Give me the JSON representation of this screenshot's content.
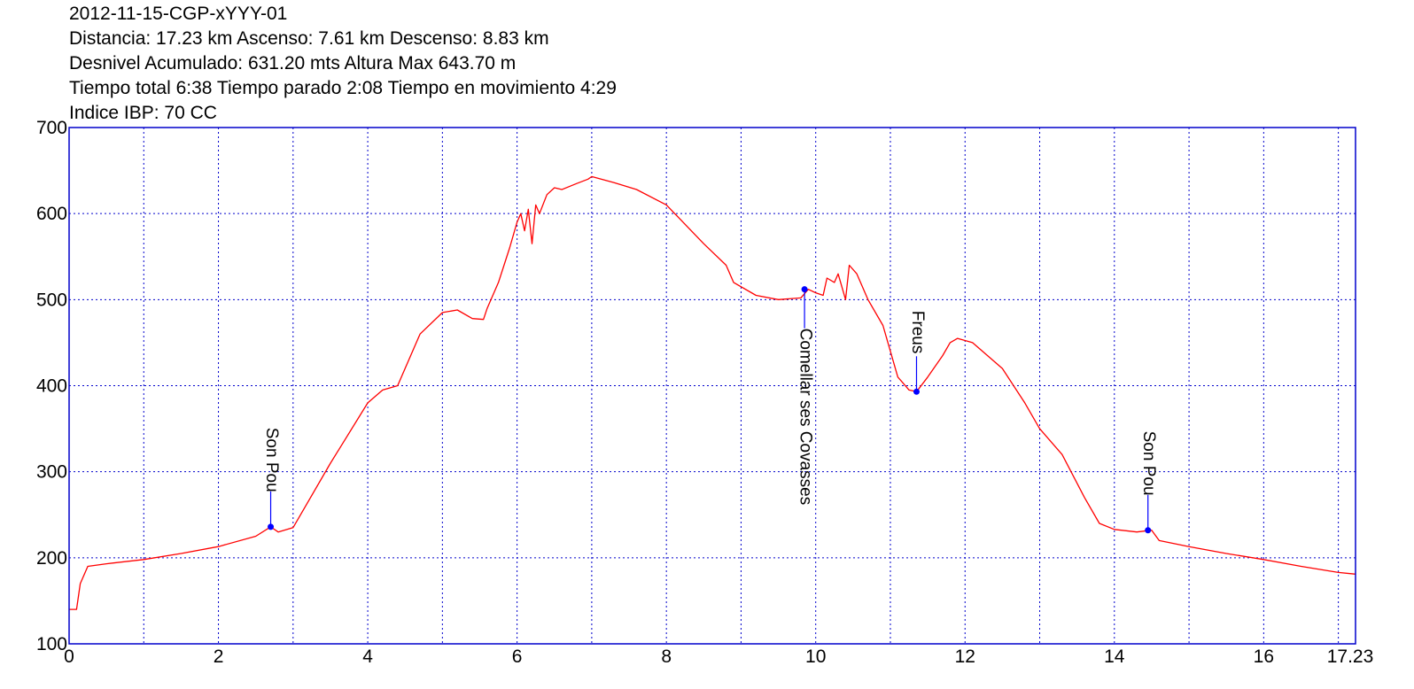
{
  "header": {
    "line1": "2012-11-15-CGP-xYYY-01",
    "line2": "Distancia: 17.23 km Ascenso: 7.61 km Descenso: 8.83 km",
    "line3": "Desnivel Acumulado: 631.20 mts  Altura Max 643.70 m",
    "line4": "Tiempo total 6:38 Tiempo parado 2:08 Tiempo en movimiento 4:29",
    "line5": "Indice IBP: 70 CC"
  },
  "colors": {
    "profile": "#ff0000",
    "frame": "#0000cc",
    "grid": "#0000cc",
    "waypoint": "#0000ff",
    "waypoint_line": "#0000ff"
  },
  "chart_data": {
    "type": "line",
    "xlim": [
      0,
      17.23
    ],
    "ylim": [
      100,
      700
    ],
    "grid": true,
    "grid_style": "dotted",
    "x_ticks": [
      0,
      2,
      4,
      6,
      8,
      10,
      12,
      14,
      16,
      17.23
    ],
    "x_tick_labels": [
      "0",
      "2",
      "4",
      "6",
      "8",
      "10",
      "12",
      "14",
      "16",
      "17.23"
    ],
    "x_grid": [
      1,
      2,
      3,
      4,
      5,
      6,
      7,
      8,
      9,
      10,
      11,
      12,
      13,
      14,
      15,
      16,
      17
    ],
    "y_ticks": [
      100,
      200,
      300,
      400,
      500,
      600,
      700
    ],
    "y_tick_labels": [
      "100",
      "200",
      "300",
      "400",
      "500",
      "600",
      "700"
    ],
    "series": [
      {
        "x": [
          0,
          0.1,
          0.15,
          0.25,
          0.5,
          1,
          1.5,
          2,
          2.5,
          2.7,
          2.8,
          3,
          3.1,
          3.5,
          4,
          4.2,
          4.4,
          4.7,
          5,
          5.2,
          5.4,
          5.55,
          5.6,
          5.75,
          5.9,
          6.0,
          6.05,
          6.1,
          6.15,
          6.2,
          6.25,
          6.3,
          6.4,
          6.5,
          6.6,
          6.8,
          6.95,
          7.0,
          7.3,
          7.6,
          8.0,
          8.5,
          8.8,
          8.9,
          9.2,
          9.5,
          9.8,
          9.9,
          10.0,
          10.1,
          10.15,
          10.25,
          10.3,
          10.4,
          10.45,
          10.55,
          10.7,
          10.9,
          11.1,
          11.25,
          11.35,
          11.5,
          11.7,
          11.8,
          11.9,
          12.1,
          12.5,
          12.8,
          13.0,
          13.3,
          13.6,
          13.8,
          14.0,
          14.3,
          14.5,
          14.6,
          15.0,
          15.5,
          16.0,
          16.5,
          17.0,
          17.23
        ],
        "y": [
          140,
          140,
          170,
          190,
          193,
          198,
          205,
          213,
          225,
          236,
          230,
          235,
          250,
          310,
          380,
          395,
          400,
          460,
          485,
          488,
          478,
          477,
          490,
          520,
          560,
          590,
          600,
          580,
          605,
          565,
          610,
          600,
          622,
          630,
          628,
          635,
          640,
          643,
          636,
          628,
          610,
          565,
          540,
          520,
          505,
          500,
          502,
          512,
          508,
          505,
          525,
          520,
          530,
          500,
          540,
          530,
          500,
          470,
          410,
          395,
          393,
          410,
          435,
          450,
          455,
          450,
          420,
          380,
          350,
          320,
          270,
          240,
          233,
          230,
          232,
          220,
          213,
          205,
          198,
          190,
          183,
          181
        ]
      }
    ],
    "waypoints": [
      {
        "x": 2.7,
        "y": 236,
        "label": "Son Pou"
      },
      {
        "x": 9.85,
        "y": 512,
        "label": "Comellar ses Covasses"
      },
      {
        "x": 11.35,
        "y": 393,
        "label": "Freus"
      },
      {
        "x": 14.45,
        "y": 232,
        "label": "Son Pou"
      }
    ]
  }
}
